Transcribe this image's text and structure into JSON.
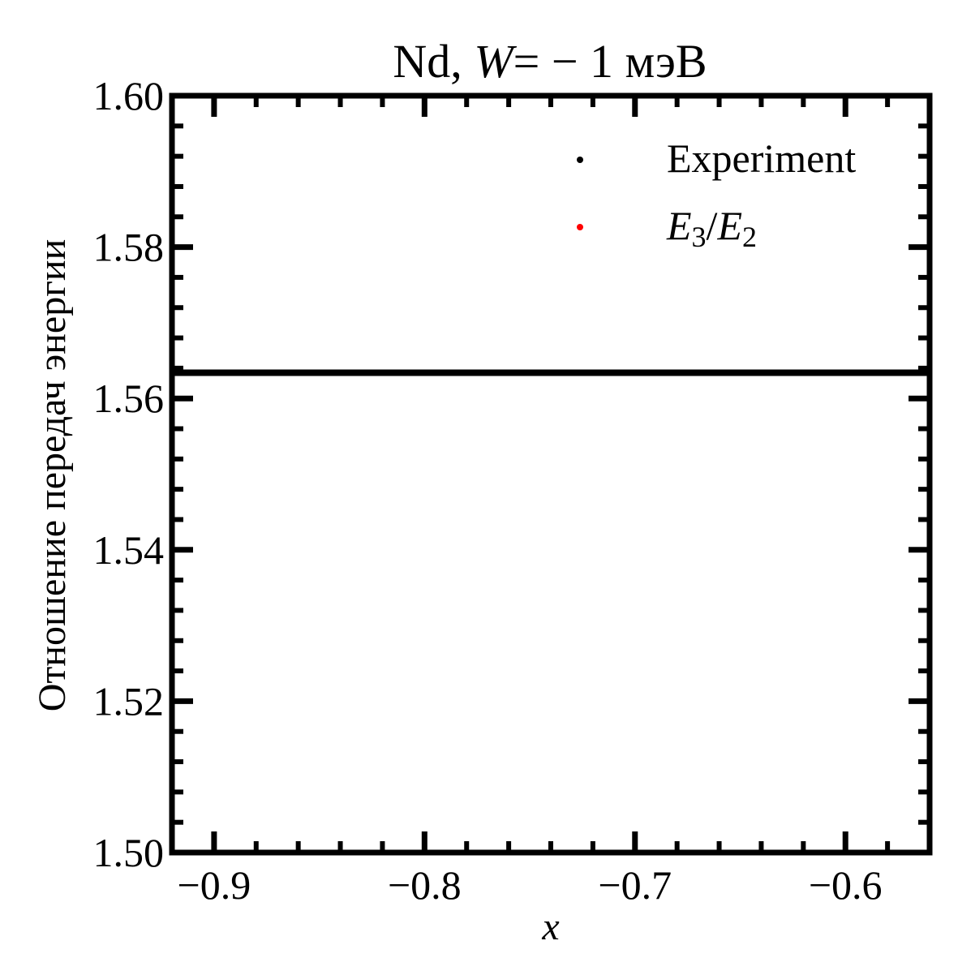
{
  "chart_data": {
    "type": "line",
    "title": {
      "prefix": "Nd, ",
      "var": "W",
      "suffix": "= − 1 мэВ"
    },
    "xlabel": "x",
    "ylabel": "Отношение передач энергии",
    "xlim": [
      -0.92,
      -0.56
    ],
    "ylim": [
      1.5,
      1.6
    ],
    "x_ticks": [
      -0.9,
      -0.8,
      -0.7,
      -0.6
    ],
    "x_tick_labels": [
      "−0.9",
      "−0.8",
      "−0.7",
      "−0.6"
    ],
    "x_minor_step": 0.02,
    "y_ticks": [
      1.5,
      1.52,
      1.54,
      1.56,
      1.58,
      1.6
    ],
    "y_tick_labels": [
      "1.50",
      "1.52",
      "1.54",
      "1.56",
      "1.58",
      "1.60"
    ],
    "y_minor_step": 0.004,
    "grid": false,
    "legend_position": "top-right",
    "series": [
      {
        "name": "Experiment",
        "kind": "hline",
        "y": 1.5634,
        "color": "#000000"
      },
      {
        "name_parts": [
          "E",
          "3",
          "/",
          "E",
          "2"
        ],
        "kind": "points",
        "x": [],
        "y": [],
        "color": "#ff0000"
      }
    ]
  }
}
